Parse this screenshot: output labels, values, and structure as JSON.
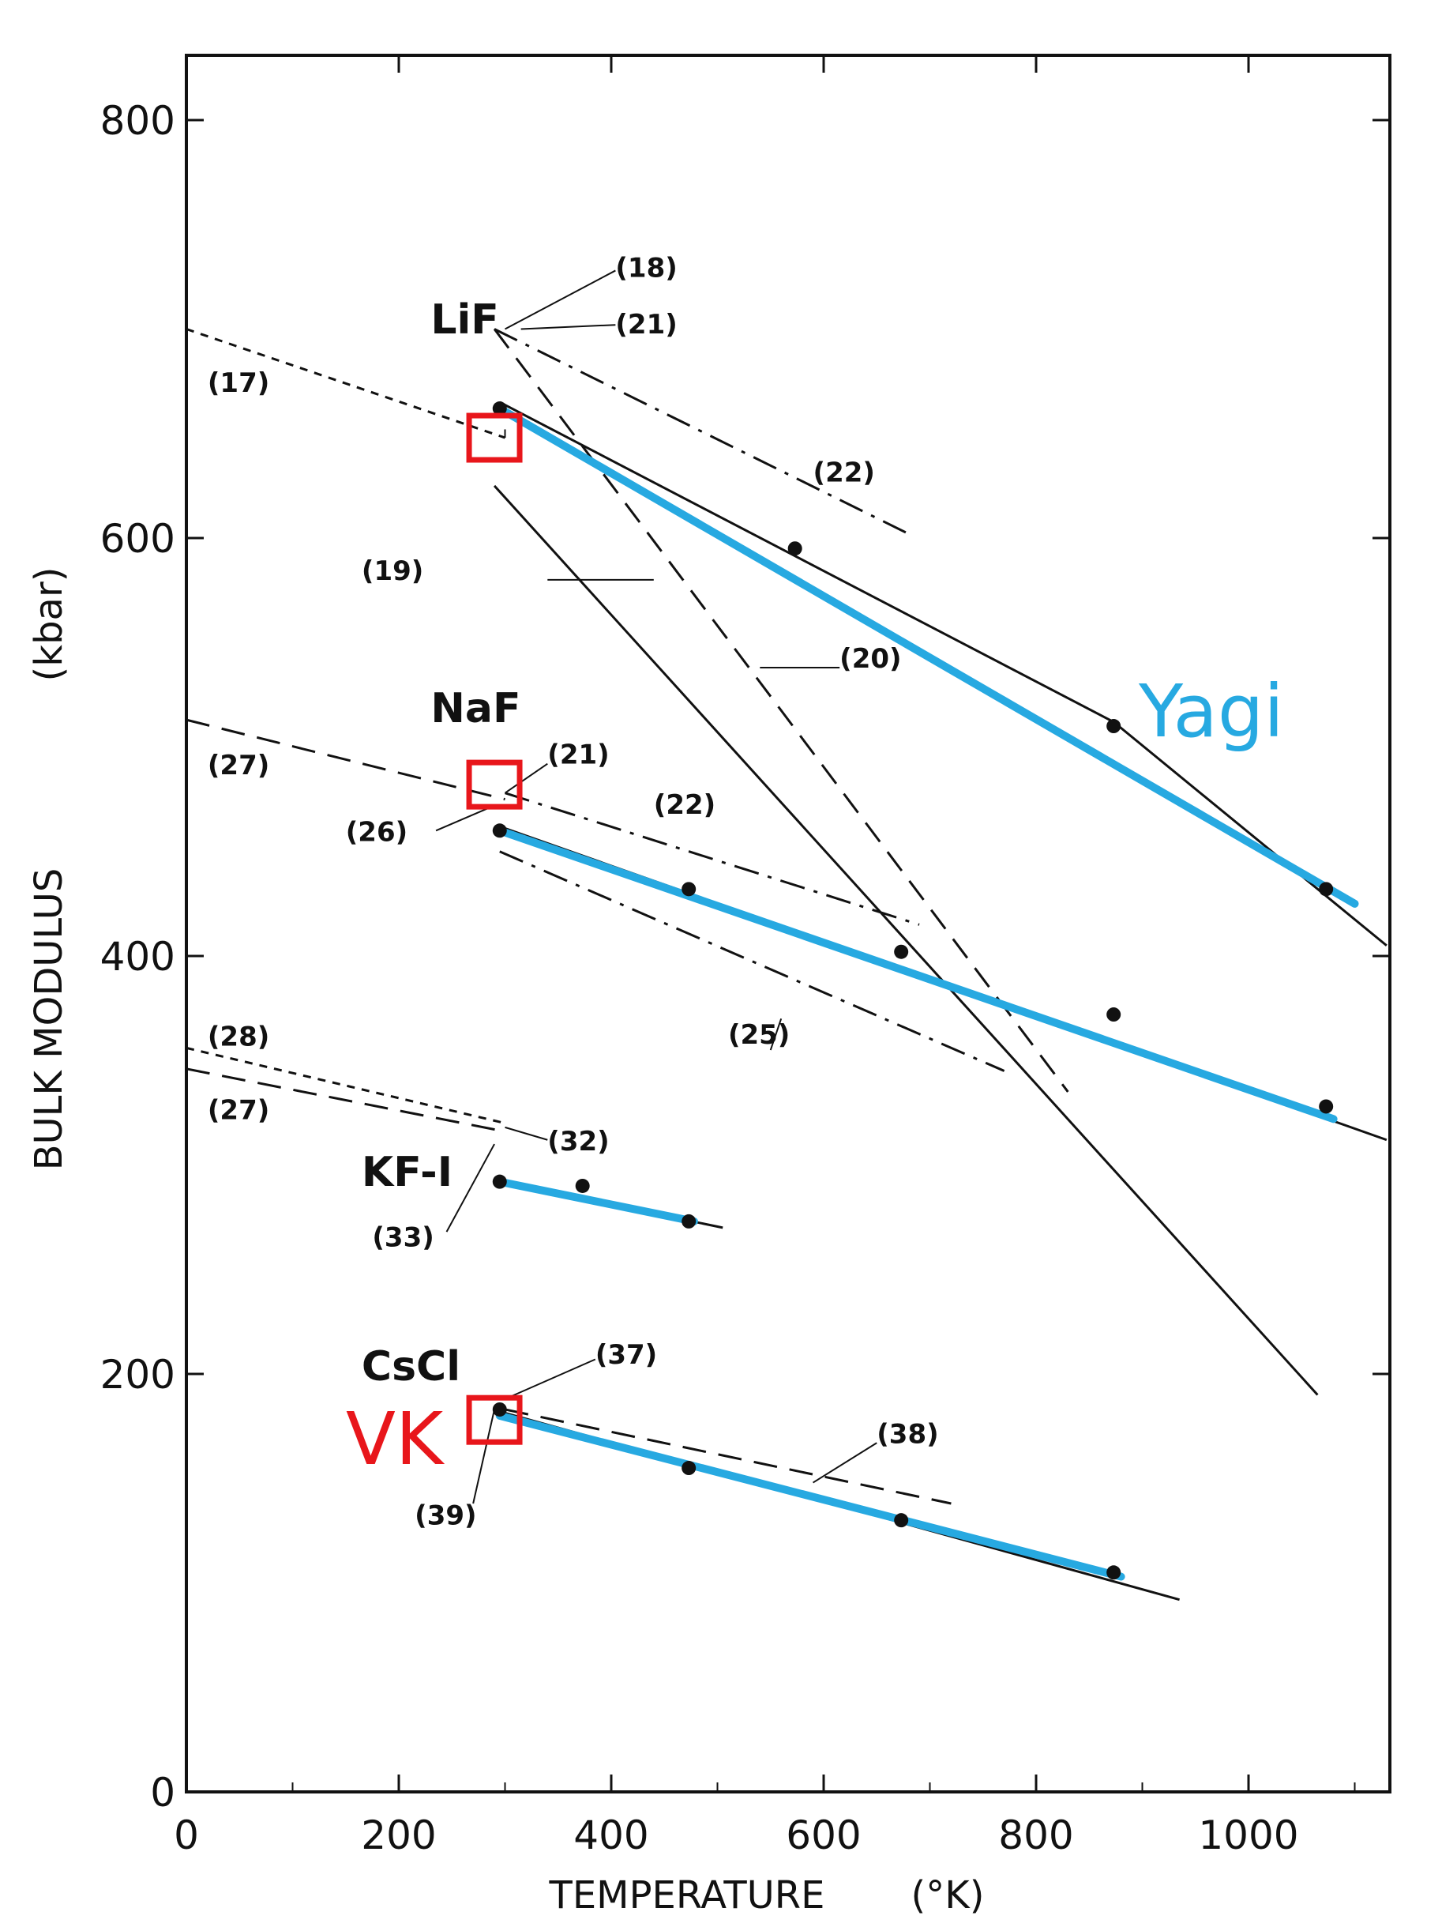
{
  "chart_data": {
    "type": "line",
    "title": "",
    "xlabel": "TEMPERATURE",
    "xlabel_unit": "(°K)",
    "ylabel": "BULK MODULUS",
    "ylabel_unit": "(kbar)",
    "xlim": [
      0,
      1130
    ],
    "ylim": [
      0,
      830
    ],
    "xticks": [
      0,
      200,
      400,
      600,
      800,
      1000
    ],
    "xtick_labels": [
      "0",
      "200",
      "400",
      "600",
      "800",
      "1000"
    ],
    "yticks": [
      0,
      200,
      400,
      600,
      800
    ],
    "ytick_labels": [
      "0",
      "200",
      "400",
      "600",
      "800"
    ],
    "colors": {
      "fit": "#27a9e1",
      "highlight": "#e8161b",
      "ink": "#111111"
    },
    "annotations": {
      "yagi": "Yagi",
      "vk": "VK"
    },
    "materials": [
      {
        "name": "LiF",
        "label": "LiF",
        "label_pos": [
          230,
          698
        ],
        "points": [
          [
            295,
            662
          ],
          [
            573,
            595
          ],
          [
            873,
            510
          ],
          [
            1073,
            432
          ]
        ],
        "fit": [
          [
            295,
            662
          ],
          [
            1100,
            425
          ]
        ],
        "lines": [
          {
            "ref": "17",
            "style": "short-dash",
            "pts": [
              [
                0,
                700
              ],
              [
                300,
                648
              ]
            ]
          },
          {
            "ref": "22",
            "style": "dash-dot",
            "pts": [
              [
                290,
                700
              ],
              [
                680,
                602
              ]
            ]
          },
          {
            "ref": "20",
            "style": "long-dash",
            "pts": [
              [
                290,
                700
              ],
              [
                830,
                335
              ]
            ]
          },
          {
            "ref": "19",
            "style": "solid",
            "pts": [
              [
                290,
                625
              ],
              [
                1065,
                190
              ]
            ]
          },
          {
            "ref": "Yagi",
            "style": "solid",
            "pts": [
              [
                295,
                665
              ],
              [
                873,
                512
              ],
              [
                1130,
                405
              ]
            ]
          }
        ],
        "refs": [
          {
            "text": "(17)",
            "pos": [
              20,
              670
            ]
          },
          {
            "text": "(18)",
            "pos": [
              404,
              725
            ]
          },
          {
            "text": "(21)",
            "pos": [
              404,
              698
            ]
          },
          {
            "text": "(22)",
            "pos": [
              590,
              627
            ]
          },
          {
            "text": "(19)",
            "pos": [
              165,
              580
            ]
          },
          {
            "text": "(20)",
            "pos": [
              615,
              538
            ]
          }
        ]
      },
      {
        "name": "NaF",
        "label": "NaF",
        "label_pos": [
          230,
          512
        ],
        "points": [
          [
            295,
            460
          ],
          [
            473,
            432
          ],
          [
            673,
            402
          ],
          [
            873,
            372
          ],
          [
            1073,
            328
          ]
        ],
        "fit": [
          [
            295,
            460
          ],
          [
            1080,
            322
          ]
        ],
        "lines": [
          {
            "ref": "27",
            "style": "long-dash",
            "pts": [
              [
                0,
                513
              ],
              [
                300,
                475
              ]
            ]
          },
          {
            "ref": "22",
            "style": "dash-dot",
            "pts": [
              [
                300,
                478
              ],
              [
                690,
                415
              ]
            ]
          },
          {
            "ref": "25",
            "style": "dash-dot",
            "pts": [
              [
                295,
                450
              ],
              [
                770,
                345
              ]
            ]
          },
          {
            "ref": "Yagi",
            "style": "solid",
            "pts": [
              [
                295,
                462
              ],
              [
                1130,
                312
              ]
            ]
          }
        ],
        "refs": [
          {
            "text": "(27)",
            "pos": [
              20,
              487
            ]
          },
          {
            "text": "(21)",
            "pos": [
              340,
              492
            ]
          },
          {
            "text": "(26)",
            "pos": [
              150,
              455
            ]
          },
          {
            "text": "(22)",
            "pos": [
              440,
              468
            ]
          },
          {
            "text": "(25)",
            "pos": [
              510,
              358
            ]
          }
        ]
      },
      {
        "name": "KF-I",
        "label": "KF-I",
        "label_pos": [
          165,
          290
        ],
        "points": [
          [
            295,
            292
          ],
          [
            373,
            290
          ],
          [
            473,
            273
          ]
        ],
        "fit": [
          [
            295,
            292
          ],
          [
            478,
            273
          ]
        ],
        "lines": [
          {
            "ref": "28",
            "style": "short-dash",
            "pts": [
              [
                0,
                356
              ],
              [
                300,
                320
              ]
            ]
          },
          {
            "ref": "27",
            "style": "long-dash",
            "pts": [
              [
                0,
                346
              ],
              [
                300,
                316
              ]
            ]
          },
          {
            "ref": "",
            "style": "solid",
            "pts": [
              [
                295,
                292
              ],
              [
                505,
                270
              ]
            ]
          }
        ],
        "refs": [
          {
            "text": "(28)",
            "pos": [
              20,
              357
            ]
          },
          {
            "text": "(27)",
            "pos": [
              20,
              322
            ]
          },
          {
            "text": "(32)",
            "pos": [
              340,
              307
            ]
          },
          {
            "text": "(33)",
            "pos": [
              175,
              261
            ]
          }
        ]
      },
      {
        "name": "CsCl",
        "label": "CsCl",
        "label_pos": [
          165,
          197
        ],
        "points": [
          [
            295,
            183
          ],
          [
            473,
            155
          ],
          [
            673,
            130
          ],
          [
            873,
            105
          ]
        ],
        "fit": [
          [
            295,
            180
          ],
          [
            880,
            103
          ]
        ],
        "lines": [
          {
            "ref": "38",
            "style": "long-dash",
            "pts": [
              [
                300,
                183
              ],
              [
                720,
                138
              ]
            ]
          },
          {
            "ref": "",
            "style": "solid",
            "pts": [
              [
                295,
                182
              ],
              [
                935,
                92
              ]
            ]
          }
        ],
        "refs": [
          {
            "text": "(37)",
            "pos": [
              385,
              205
            ]
          },
          {
            "text": "(38)",
            "pos": [
              650,
              167
            ]
          },
          {
            "text": "(39)",
            "pos": [
              215,
              128
            ]
          }
        ]
      }
    ],
    "highlight_boxes": [
      [
        290,
        648
      ],
      [
        290,
        482
      ],
      [
        290,
        178
      ]
    ]
  }
}
